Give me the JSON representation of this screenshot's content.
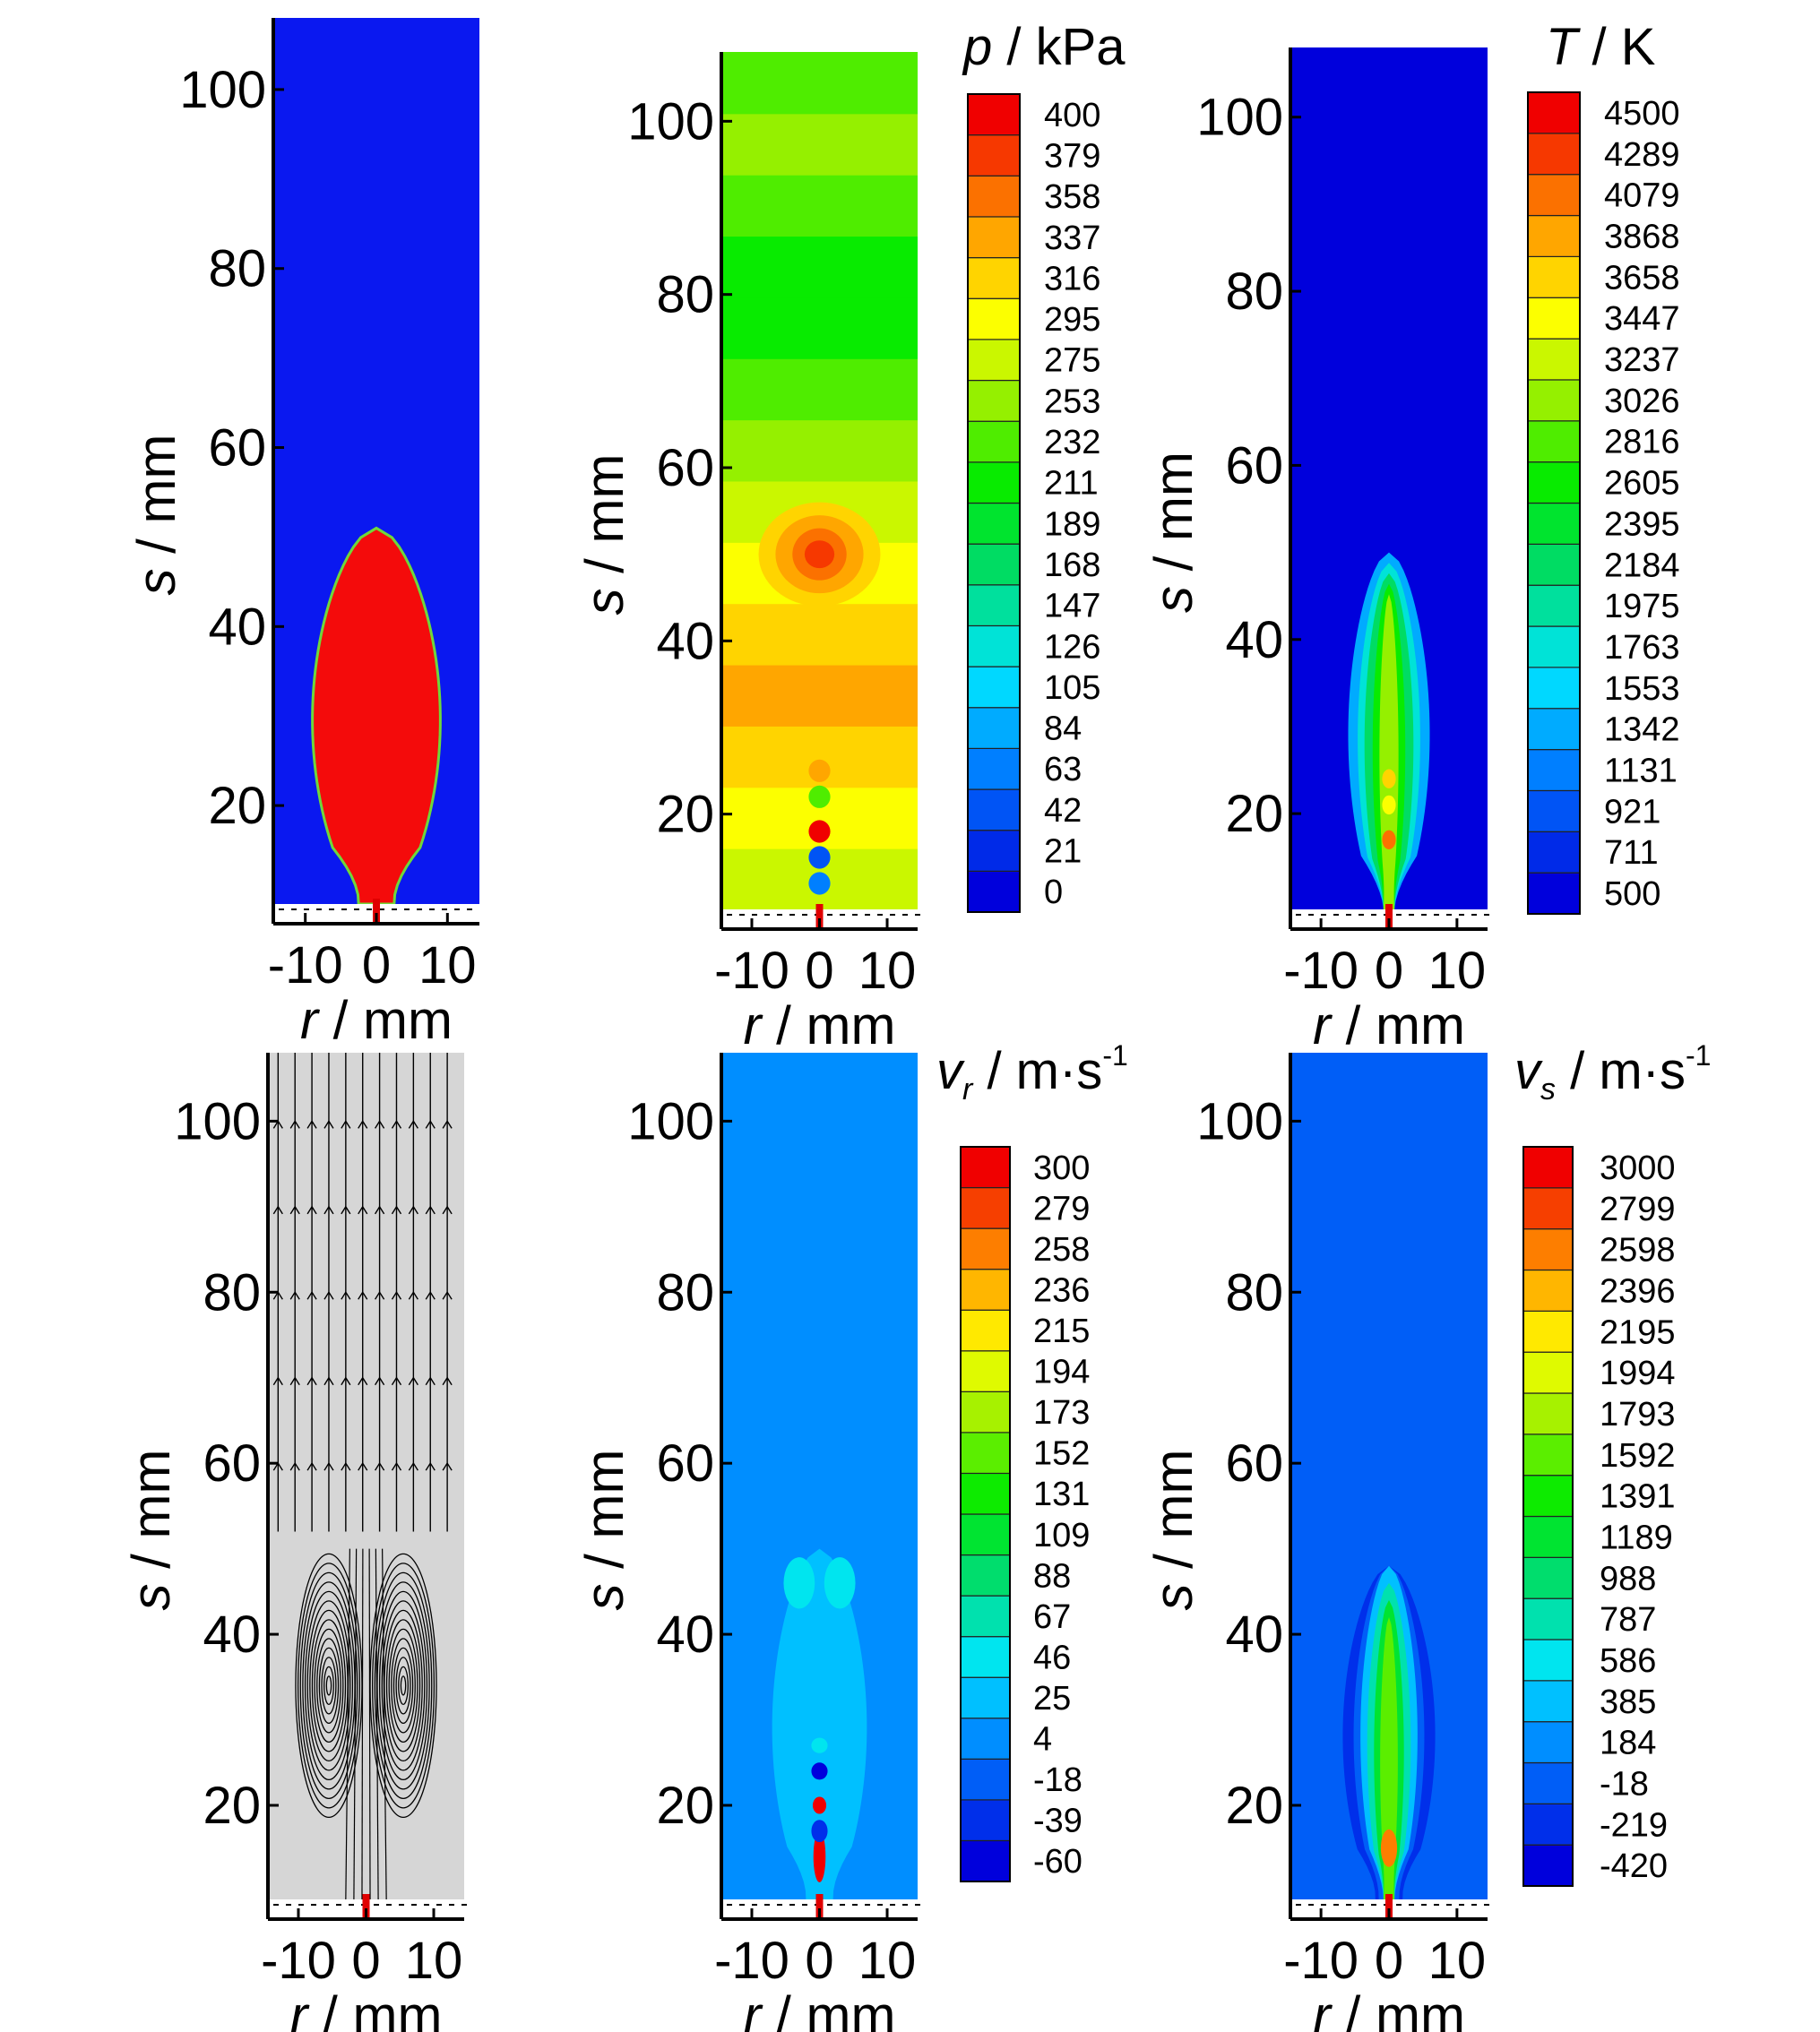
{
  "figure": {
    "axis_labels": {
      "x_var": "r",
      "y_var": "s",
      "unit": "mm"
    }
  },
  "chart_data": [
    {
      "type": "heatmap",
      "panel": "top-left",
      "field": "two-phase region",
      "background_color": "#0a18f0",
      "plume_color": "#f40b0b",
      "edge_color": "#6fd83a",
      "xlabel": "r / mm",
      "ylabel": "s / mm",
      "xlim": [
        -14.5,
        14.5
      ],
      "ylim": [
        9,
        108
      ],
      "x_ticks": [
        "-10",
        "0",
        "10"
      ],
      "y_ticks": [
        "20",
        "40",
        "60",
        "80",
        "100"
      ],
      "plume_tip_s": 51,
      "plume_max_halfwidth_r": 9,
      "legend": null
    },
    {
      "type": "heatmap",
      "panel": "top-middle",
      "field": "pressure",
      "colorbar_title": {
        "var": "p",
        "unit": "kPa"
      },
      "colorbar_levels": [
        "0",
        "21",
        "42",
        "63",
        "84",
        "105",
        "126",
        "147",
        "168",
        "189",
        "211",
        "232",
        "253",
        "275",
        "295",
        "316",
        "337",
        "358",
        "379",
        "400"
      ],
      "xlabel": "r / mm",
      "ylabel": "s / mm",
      "xlim": [
        -14.5,
        14.5
      ],
      "ylim": [
        9,
        108
      ],
      "x_ticks": [
        "-10",
        "0",
        "10"
      ],
      "y_ticks": [
        "20",
        "40",
        "60",
        "80",
        "100"
      ],
      "banded_background_levels_bottom_to_top": [
        275,
        295,
        316,
        337,
        316,
        295,
        275,
        253,
        232,
        211,
        211,
        232,
        253,
        232
      ],
      "peak_location_s": 50,
      "peak_value": 379,
      "shock_cells_s": [
        12,
        15,
        18,
        22,
        25
      ]
    },
    {
      "type": "heatmap",
      "panel": "top-right",
      "field": "temperature",
      "colorbar_title": {
        "var": "T",
        "unit": "K"
      },
      "colorbar_levels": [
        "500",
        "711",
        "921",
        "1131",
        "1342",
        "1553",
        "1763",
        "1975",
        "2184",
        "2395",
        "2605",
        "2816",
        "3026",
        "3237",
        "3447",
        "3658",
        "3868",
        "4079",
        "4289",
        "4500"
      ],
      "xlabel": "r / mm",
      "ylabel": "s / mm",
      "xlim": [
        -14.5,
        14.5
      ],
      "ylim": [
        9,
        108
      ],
      "x_ticks": [
        "-10",
        "0",
        "10"
      ],
      "y_ticks": [
        "20",
        "40",
        "60",
        "80",
        "100"
      ],
      "ambient_value": 500,
      "plume_tip_s": 50,
      "plume_core_peak": 4079
    },
    {
      "type": "heatmap",
      "panel": "bottom-left",
      "field": "streamlines",
      "background_color": "#d6d6d6",
      "line_color": "#000000",
      "xlabel": "r / mm",
      "ylabel": "s / mm",
      "xlim": [
        -14.5,
        14.5
      ],
      "ylim": [
        9,
        108
      ],
      "x_ticks": [
        "-10",
        "0",
        "10"
      ],
      "y_ticks": [
        "20",
        "40",
        "60",
        "80",
        "100"
      ],
      "vortex_centers": [
        {
          "r": -5.5,
          "s": 34
        },
        {
          "r": 5.5,
          "s": 34
        }
      ]
    },
    {
      "type": "heatmap",
      "panel": "bottom-middle",
      "field": "radial velocity",
      "colorbar_title": {
        "var": "v",
        "sub": "r",
        "unit": "m·s",
        "sup": "-1"
      },
      "colorbar_levels": [
        "-60",
        "-39",
        "-18",
        "4",
        "25",
        "46",
        "67",
        "88",
        "109",
        "131",
        "152",
        "173",
        "194",
        "215",
        "236",
        "258",
        "279",
        "300"
      ],
      "xlabel": "r / mm",
      "ylabel": "s / mm",
      "xlim": [
        -14.5,
        14.5
      ],
      "ylim": [
        9,
        108
      ],
      "x_ticks": [
        "-10",
        "0",
        "10"
      ],
      "y_ticks": [
        "20",
        "40",
        "60",
        "80",
        "100"
      ],
      "ambient_value": 4,
      "vortex_lobes": [
        {
          "r": -3,
          "s": 46,
          "value": 46
        },
        {
          "r": 3,
          "s": 46,
          "value": 46
        }
      ],
      "peak_value": 300
    },
    {
      "type": "heatmap",
      "panel": "bottom-right",
      "field": "axial velocity",
      "colorbar_title": {
        "var": "v",
        "sub": "s",
        "unit": "m·s",
        "sup": "-1"
      },
      "colorbar_levels": [
        "-420",
        "-219",
        "-18",
        "184",
        "385",
        "586",
        "787",
        "988",
        "1189",
        "1391",
        "1592",
        "1793",
        "1994",
        "2195",
        "2396",
        "2598",
        "2799",
        "3000"
      ],
      "xlabel": "r / mm",
      "ylabel": "s / mm",
      "xlim": [
        -14.5,
        14.5
      ],
      "ylim": [
        9,
        108
      ],
      "x_ticks": [
        "-10",
        "0",
        "10"
      ],
      "y_ticks": [
        "20",
        "40",
        "60",
        "80",
        "100"
      ],
      "ambient_value": -18,
      "plume_tip_s": 48,
      "peak_value": 2598
    }
  ]
}
